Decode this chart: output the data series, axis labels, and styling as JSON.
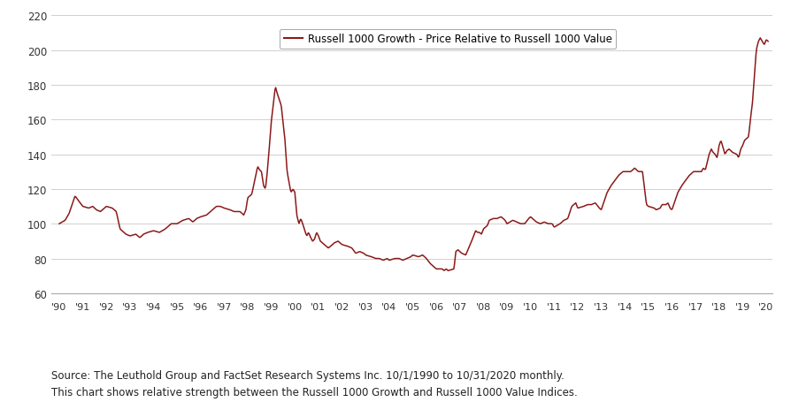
{
  "legend_label": "Russell 1000 Growth - Price Relative to Russell 1000 Value",
  "line_color": "#8B1A1A",
  "background_color": "#ffffff",
  "grid_color": "#d0d0d0",
  "ylim": [
    60,
    220
  ],
  "yticks": [
    60,
    80,
    100,
    120,
    140,
    160,
    180,
    200,
    220
  ],
  "x_labels": [
    "'90",
    "'91",
    "'92",
    "'93",
    "'94",
    "'95",
    "'96",
    "'97",
    "'98",
    "'99",
    "'00",
    "'01",
    "'02",
    "'03",
    "'04",
    "'05",
    "'06",
    "'07",
    "'08",
    "'09",
    "'10",
    "'11",
    "'12",
    "'13",
    "'14",
    "'15",
    "'16",
    "'17",
    "'18",
    "'19",
    "'20"
  ],
  "source_text": "Source: The Leuthold Group and FactSet Research Systems Inc. 10/1/1990 to 10/31/2020 monthly.\nThis chart shows relative strength between the Russell 1000 Growth and Russell 1000 Value Indices.",
  "key_points": [
    [
      1990.75,
      100
    ],
    [
      1991.0,
      102
    ],
    [
      1991.17,
      106
    ],
    [
      1991.42,
      116
    ],
    [
      1991.58,
      113
    ],
    [
      1991.75,
      110
    ],
    [
      1992.0,
      109
    ],
    [
      1992.17,
      110
    ],
    [
      1992.33,
      108
    ],
    [
      1992.5,
      107
    ],
    [
      1992.67,
      109
    ],
    [
      1992.75,
      110
    ],
    [
      1993.0,
      109
    ],
    [
      1993.17,
      107
    ],
    [
      1993.33,
      97
    ],
    [
      1993.58,
      94
    ],
    [
      1993.75,
      93
    ],
    [
      1994.0,
      94
    ],
    [
      1994.17,
      92
    ],
    [
      1994.33,
      94
    ],
    [
      1994.5,
      95
    ],
    [
      1994.75,
      96
    ],
    [
      1995.0,
      95
    ],
    [
      1995.25,
      97
    ],
    [
      1995.5,
      100
    ],
    [
      1995.75,
      100
    ],
    [
      1996.0,
      102
    ],
    [
      1996.25,
      103
    ],
    [
      1996.42,
      101
    ],
    [
      1996.58,
      103
    ],
    [
      1996.75,
      104
    ],
    [
      1997.0,
      105
    ],
    [
      1997.25,
      108
    ],
    [
      1997.42,
      110
    ],
    [
      1997.58,
      110
    ],
    [
      1997.75,
      109
    ],
    [
      1998.0,
      108
    ],
    [
      1998.17,
      107
    ],
    [
      1998.42,
      107
    ],
    [
      1998.58,
      105
    ],
    [
      1998.67,
      108
    ],
    [
      1998.75,
      115
    ],
    [
      1998.92,
      117
    ],
    [
      1999.0,
      122
    ],
    [
      1999.17,
      133
    ],
    [
      1999.25,
      131
    ],
    [
      1999.33,
      130
    ],
    [
      1999.42,
      122
    ],
    [
      1999.5,
      120
    ],
    [
      1999.58,
      130
    ],
    [
      1999.67,
      145
    ],
    [
      1999.75,
      159
    ],
    [
      1999.83,
      168
    ],
    [
      1999.92,
      179
    ],
    [
      2000.0,
      175
    ],
    [
      2000.08,
      172
    ],
    [
      2000.17,
      168
    ],
    [
      2000.25,
      158
    ],
    [
      2000.33,
      148
    ],
    [
      2000.42,
      130
    ],
    [
      2000.5,
      124
    ],
    [
      2000.58,
      118
    ],
    [
      2000.67,
      120
    ],
    [
      2000.75,
      118
    ],
    [
      2000.83,
      105
    ],
    [
      2000.92,
      100
    ],
    [
      2001.0,
      103
    ],
    [
      2001.08,
      100
    ],
    [
      2001.17,
      96
    ],
    [
      2001.25,
      93
    ],
    [
      2001.33,
      95
    ],
    [
      2001.42,
      92
    ],
    [
      2001.5,
      90
    ],
    [
      2001.58,
      91
    ],
    [
      2001.67,
      95
    ],
    [
      2001.75,
      93
    ],
    [
      2001.83,
      90
    ],
    [
      2002.0,
      88
    ],
    [
      2002.17,
      86
    ],
    [
      2002.42,
      89
    ],
    [
      2002.58,
      90
    ],
    [
      2002.75,
      88
    ],
    [
      2003.0,
      87
    ],
    [
      2003.17,
      86
    ],
    [
      2003.33,
      83
    ],
    [
      2003.5,
      84
    ],
    [
      2003.67,
      83
    ],
    [
      2003.75,
      82
    ],
    [
      2004.0,
      81
    ],
    [
      2004.17,
      80
    ],
    [
      2004.33,
      80
    ],
    [
      2004.5,
      79
    ],
    [
      2004.67,
      80
    ],
    [
      2004.75,
      79
    ],
    [
      2005.0,
      80
    ],
    [
      2005.17,
      80
    ],
    [
      2005.33,
      79
    ],
    [
      2005.5,
      80
    ],
    [
      2005.67,
      81
    ],
    [
      2005.75,
      82
    ],
    [
      2006.0,
      81
    ],
    [
      2006.17,
      82
    ],
    [
      2006.33,
      80
    ],
    [
      2006.5,
      77
    ],
    [
      2006.67,
      75
    ],
    [
      2006.75,
      74
    ],
    [
      2007.0,
      74
    ],
    [
      2007.08,
      73
    ],
    [
      2007.17,
      74
    ],
    [
      2007.25,
      73
    ],
    [
      2007.5,
      74
    ],
    [
      2007.58,
      84
    ],
    [
      2007.67,
      85
    ],
    [
      2007.75,
      84
    ],
    [
      2007.83,
      83
    ],
    [
      2008.0,
      82
    ],
    [
      2008.25,
      90
    ],
    [
      2008.42,
      96
    ],
    [
      2008.5,
      95
    ],
    [
      2008.58,
      95
    ],
    [
      2008.67,
      94
    ],
    [
      2008.75,
      97
    ],
    [
      2008.92,
      99
    ],
    [
      2009.0,
      102
    ],
    [
      2009.17,
      103
    ],
    [
      2009.33,
      103
    ],
    [
      2009.5,
      104
    ],
    [
      2009.67,
      102
    ],
    [
      2009.75,
      100
    ],
    [
      2010.0,
      102
    ],
    [
      2010.17,
      101
    ],
    [
      2010.33,
      100
    ],
    [
      2010.5,
      100
    ],
    [
      2010.67,
      103
    ],
    [
      2010.75,
      104
    ],
    [
      2011.0,
      101
    ],
    [
      2011.17,
      100
    ],
    [
      2011.33,
      101
    ],
    [
      2011.5,
      100
    ],
    [
      2011.67,
      100
    ],
    [
      2011.75,
      98
    ],
    [
      2012.0,
      100
    ],
    [
      2012.17,
      102
    ],
    [
      2012.33,
      103
    ],
    [
      2012.5,
      110
    ],
    [
      2012.67,
      112
    ],
    [
      2012.75,
      109
    ],
    [
      2013.0,
      110
    ],
    [
      2013.17,
      111
    ],
    [
      2013.33,
      111
    ],
    [
      2013.5,
      112
    ],
    [
      2013.67,
      109
    ],
    [
      2013.75,
      108
    ],
    [
      2014.0,
      118
    ],
    [
      2014.17,
      122
    ],
    [
      2014.33,
      125
    ],
    [
      2014.5,
      128
    ],
    [
      2014.67,
      130
    ],
    [
      2014.75,
      130
    ],
    [
      2015.0,
      130
    ],
    [
      2015.17,
      132
    ],
    [
      2015.33,
      130
    ],
    [
      2015.5,
      130
    ],
    [
      2015.67,
      111
    ],
    [
      2015.75,
      110
    ],
    [
      2016.0,
      109
    ],
    [
      2016.08,
      108
    ],
    [
      2016.25,
      109
    ],
    [
      2016.33,
      111
    ],
    [
      2016.5,
      111
    ],
    [
      2016.58,
      112
    ],
    [
      2016.67,
      109
    ],
    [
      2016.75,
      108
    ],
    [
      2017.0,
      118
    ],
    [
      2017.17,
      122
    ],
    [
      2017.33,
      125
    ],
    [
      2017.5,
      128
    ],
    [
      2017.67,
      130
    ],
    [
      2017.75,
      130
    ],
    [
      2018.0,
      130
    ],
    [
      2018.08,
      132
    ],
    [
      2018.17,
      131
    ],
    [
      2018.33,
      140
    ],
    [
      2018.42,
      143
    ],
    [
      2018.5,
      141
    ],
    [
      2018.58,
      140
    ],
    [
      2018.67,
      138
    ],
    [
      2018.75,
      145
    ],
    [
      2018.83,
      148
    ],
    [
      2019.0,
      140
    ],
    [
      2019.08,
      142
    ],
    [
      2019.17,
      143
    ],
    [
      2019.33,
      141
    ],
    [
      2019.5,
      140
    ],
    [
      2019.58,
      138
    ],
    [
      2019.67,
      143
    ],
    [
      2019.75,
      145
    ],
    [
      2019.83,
      148
    ],
    [
      2020.0,
      150
    ],
    [
      2020.08,
      160
    ],
    [
      2020.17,
      170
    ],
    [
      2020.25,
      185
    ],
    [
      2020.33,
      200
    ],
    [
      2020.42,
      205
    ],
    [
      2020.5,
      207
    ],
    [
      2020.58,
      205
    ],
    [
      2020.67,
      203
    ],
    [
      2020.75,
      206
    ],
    [
      2020.83,
      205
    ]
  ]
}
